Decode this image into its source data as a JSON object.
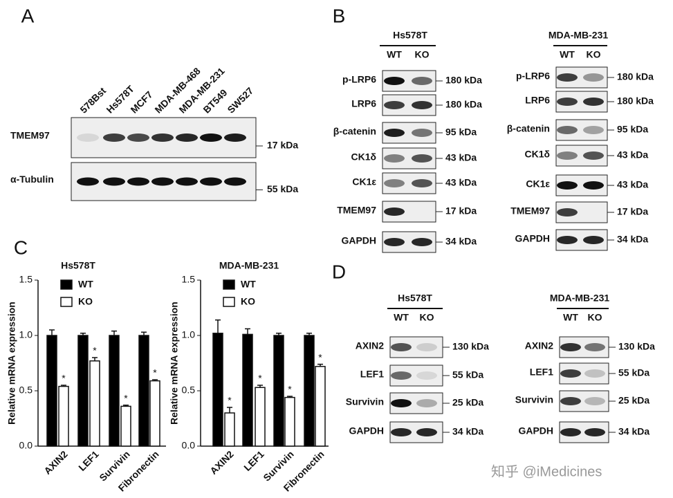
{
  "panel_labels": [
    "A",
    "B",
    "C",
    "D"
  ],
  "panel_a": {
    "cell_lines": [
      "578Bst",
      "Hs578T",
      "MCF7",
      "MDA-MB-468",
      "MDA-MB-231",
      "BT549",
      "SW527"
    ],
    "rows": [
      {
        "label": "TMEM97",
        "size": "17 kDa"
      },
      {
        "label": "α-Tubulin",
        "size": "55 kDa"
      }
    ]
  },
  "panel_b": {
    "groups": [
      {
        "title": "Hs578T",
        "lanes": [
          "WT",
          "KO"
        ],
        "rows": [
          {
            "label": "p-LRP6",
            "size": "180 kDa"
          },
          {
            "label": "LRP6",
            "size": "180 kDa"
          },
          {
            "label": "β-catenin",
            "size": "95 kDa"
          },
          {
            "label": "CK1δ",
            "size": "43 kDa"
          },
          {
            "label": "CK1ε",
            "size": "43 kDa"
          },
          {
            "label": "TMEM97",
            "size": "17 kDa"
          },
          {
            "label": "GAPDH",
            "size": "34 kDa"
          }
        ]
      },
      {
        "title": "MDA-MB-231",
        "lanes": [
          "WT",
          "KO"
        ],
        "rows": [
          {
            "label": "p-LRP6",
            "size": "180 kDa"
          },
          {
            "label": "LRP6",
            "size": "180 kDa"
          },
          {
            "label": "β-catenin",
            "size": "95 kDa"
          },
          {
            "label": "CK1δ",
            "size": "43 kDa"
          },
          {
            "label": "CK1ε",
            "size": "43 kDa"
          },
          {
            "label": "TMEM97",
            "size": "17 kDa"
          },
          {
            "label": "GAPDH",
            "size": "34 kDa"
          }
        ]
      }
    ]
  },
  "panel_d": {
    "groups": [
      {
        "title": "Hs578T",
        "lanes": [
          "WT",
          "KO"
        ],
        "rows": [
          {
            "label": "AXIN2",
            "size": "130 kDa"
          },
          {
            "label": "LEF1",
            "size": "55 kDa"
          },
          {
            "label": "Survivin",
            "size": "25 kDa"
          },
          {
            "label": "GAPDH",
            "size": "34 kDa"
          }
        ]
      },
      {
        "title": "MDA-MB-231",
        "lanes": [
          "WT",
          "KO"
        ],
        "rows": [
          {
            "label": "AXIN2",
            "size": "130 kDa"
          },
          {
            "label": "LEF1",
            "size": "55 kDa"
          },
          {
            "label": "Survivin",
            "size": "25 kDa"
          },
          {
            "label": "GAPDH",
            "size": "34 kDa"
          }
        ]
      }
    ]
  },
  "chart_data": [
    {
      "type": "bar",
      "title": "Hs578T",
      "y_label": "Relative mRNA expression",
      "categories": [
        "AXIN2",
        "LEF1",
        "Survivin",
        "Fibronectin"
      ],
      "series": [
        {
          "name": "WT",
          "color": "#000000",
          "values": [
            1.0,
            1.0,
            1.0,
            1.0
          ],
          "errors": [
            0.05,
            0.02,
            0.04,
            0.03
          ]
        },
        {
          "name": "KO",
          "color": "#ffffff",
          "values": [
            0.54,
            0.77,
            0.36,
            0.59
          ],
          "errors": [
            0.01,
            0.03,
            0.01,
            0.01
          ]
        }
      ],
      "significance": [
        "*",
        "*",
        "*",
        "*"
      ],
      "ylim": [
        0,
        1.5
      ],
      "yticks": [
        {
          "value": 0,
          "label": "0.0"
        },
        {
          "value": 0.5,
          "label": "0.5"
        },
        {
          "value": 1,
          "label": "1.0"
        },
        {
          "value": 1.5,
          "label": "1.5"
        }
      ]
    },
    {
      "type": "bar",
      "title": "MDA-MB-231",
      "y_label": "Relative mRNA expression",
      "categories": [
        "AXIN2",
        "LEF1",
        "Survivin",
        "Fibronectin"
      ],
      "series": [
        {
          "name": "WT",
          "color": "#000000",
          "values": [
            1.02,
            1.01,
            1.0,
            1.0
          ],
          "errors": [
            0.12,
            0.05,
            0.02,
            0.02
          ]
        },
        {
          "name": "KO",
          "color": "#ffffff",
          "values": [
            0.3,
            0.53,
            0.44,
            0.72
          ],
          "errors": [
            0.05,
            0.02,
            0.01,
            0.02
          ]
        }
      ],
      "significance": [
        "*",
        "*",
        "*",
        "*"
      ],
      "ylim": [
        0,
        1.5
      ],
      "yticks": [
        {
          "value": 0,
          "label": "0.0"
        },
        {
          "value": 0.5,
          "label": "0.5"
        },
        {
          "value": 1,
          "label": "1.0"
        },
        {
          "value": 1.5,
          "label": "1.5"
        }
      ]
    }
  ],
  "watermark": "知乎 @iMedicines"
}
